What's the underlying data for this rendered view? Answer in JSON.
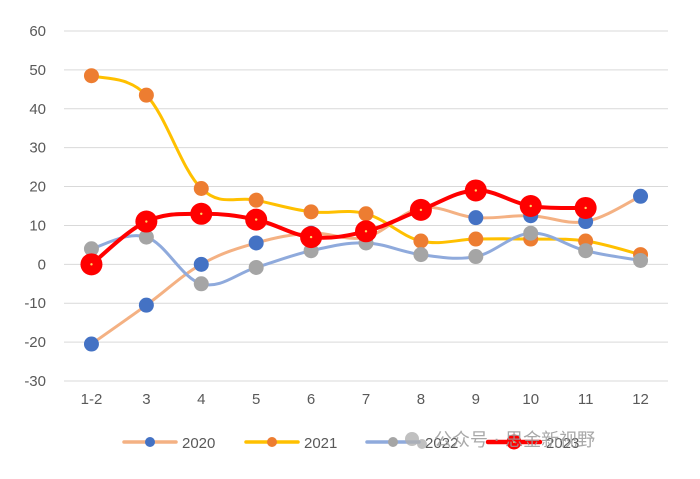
{
  "chart_data": {
    "type": "line",
    "title": "",
    "xlabel": "",
    "ylabel": "",
    "categories": [
      "1-2",
      "3",
      "4",
      "5",
      "6",
      "7",
      "8",
      "9",
      "10",
      "11",
      "12"
    ],
    "ylim": [
      -30,
      60
    ],
    "yticks": [
      -30,
      -20,
      -10,
      0,
      10,
      20,
      30,
      40,
      50,
      60
    ],
    "grid": true,
    "legend_position": "bottom",
    "series": [
      {
        "name": "2020",
        "line_color": "#F4B183",
        "marker_color": "#4472C4",
        "values": [
          -20.5,
          -10.5,
          0,
          5.5,
          8,
          7,
          14.5,
          12,
          12.5,
          11,
          17.5
        ]
      },
      {
        "name": "2021",
        "line_color": "#FFC000",
        "marker_color": "#ED7D31",
        "values": [
          48.5,
          43.5,
          19.5,
          16.5,
          13.5,
          13,
          6,
          6.5,
          6.5,
          6,
          2.5
        ]
      },
      {
        "name": "2022",
        "line_color": "#8FAADC",
        "marker_color": "#A5A5A5",
        "values": [
          4,
          7,
          -5,
          -0.8,
          3.5,
          5.5,
          2.5,
          2,
          8,
          3.5,
          1
        ]
      },
      {
        "name": "2023",
        "line_color": "#FF0000",
        "marker_color": "#FF0000",
        "values": [
          0,
          11,
          13,
          11.5,
          7,
          8.5,
          14,
          19,
          15,
          14.5,
          null
        ]
      }
    ]
  },
  "watermark": {
    "text": "公众号 · 思金新视野"
  }
}
